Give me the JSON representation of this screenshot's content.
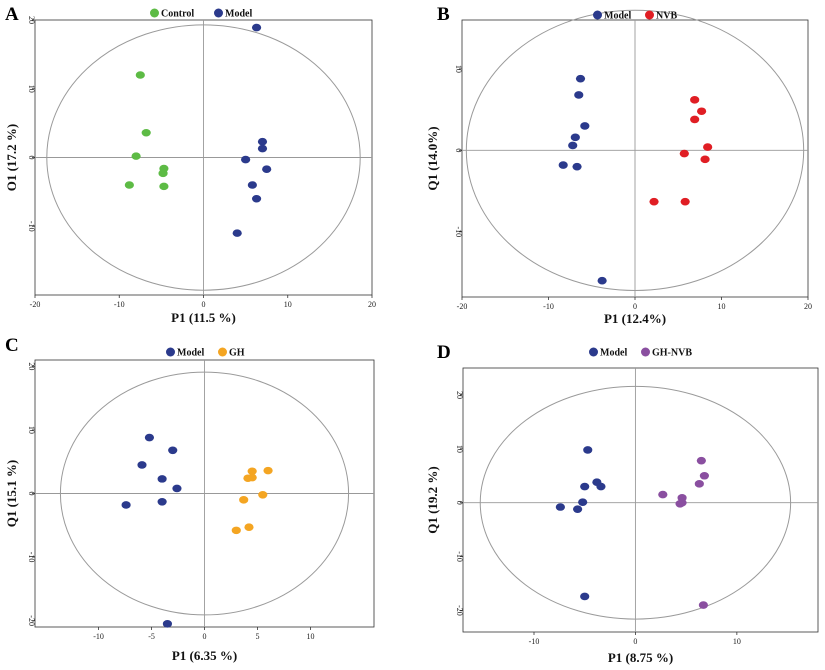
{
  "figure": {
    "colors": {
      "Model": "#2b3a8c",
      "Control": "#5dbb45",
      "NVB": "#e01e24",
      "GH": "#f4a522",
      "GH-NVB": "#8a4fa0",
      "axis": "#999999",
      "ellipse": "#9a9a9a"
    }
  },
  "chart_data": [
    {
      "type": "scatter",
      "panel_label": "A",
      "xlabel": "P1 (11.5 %)",
      "ylabel": "O1 (17.2 %)",
      "xlim": [
        -20,
        20
      ],
      "ylim": [
        -20,
        20
      ],
      "xticks": [
        "-20",
        "-10",
        "0",
        "10",
        "20"
      ],
      "yticks": [
        "20",
        "10",
        "0",
        "-10"
      ],
      "legend": [
        "Control",
        "Model"
      ],
      "ellipse": {
        "rx": 18.6,
        "ry": 19.3
      },
      "series": [
        {
          "name": "Control",
          "points": [
            [
              -7.5,
              12
            ],
            [
              -6.8,
              3.6
            ],
            [
              -8,
              0.2
            ],
            [
              -4.7,
              -1.6
            ],
            [
              -4.8,
              -2.3
            ],
            [
              -8.8,
              -4
            ],
            [
              -4.7,
              -4.2
            ]
          ]
        },
        {
          "name": "Model",
          "points": [
            [
              6.3,
              18.9
            ],
            [
              7,
              2.3
            ],
            [
              7,
              1.3
            ],
            [
              5,
              -0.3
            ],
            [
              7.5,
              -1.7
            ],
            [
              5.8,
              -4
            ],
            [
              6.3,
              -6
            ],
            [
              4,
              -11
            ]
          ]
        }
      ]
    },
    {
      "type": "scatter",
      "panel_label": "B",
      "xlabel": "P1 (12.4%)",
      "ylabel": "Q1 (14.0%)",
      "xlim": [
        -20,
        20
      ],
      "ylim": [
        -18,
        16
      ],
      "xticks": [
        "-20",
        "-10",
        "0",
        "10",
        "20"
      ],
      "yticks": [
        "10",
        "0",
        "-10"
      ],
      "legend": [
        "Model",
        "NVB"
      ],
      "ellipse": {
        "rx": 19.5,
        "ry": 17.2
      },
      "series": [
        {
          "name": "Model",
          "points": [
            [
              -6.3,
              8.8
            ],
            [
              -6.5,
              6.8
            ],
            [
              -5.8,
              3
            ],
            [
              -6.9,
              1.6
            ],
            [
              -7.2,
              0.6
            ],
            [
              -8.3,
              -1.8
            ],
            [
              -6.7,
              -2
            ],
            [
              -3.8,
              -16
            ]
          ]
        },
        {
          "name": "NVB",
          "points": [
            [
              6.9,
              6.2
            ],
            [
              7.7,
              4.8
            ],
            [
              6.9,
              3.8
            ],
            [
              8.4,
              0.4
            ],
            [
              5.7,
              -0.4
            ],
            [
              8.1,
              -1.1
            ],
            [
              2.2,
              -6.3
            ],
            [
              5.8,
              -6.3
            ]
          ]
        }
      ]
    },
    {
      "type": "scatter",
      "panel_label": "C",
      "xlabel": "P1 (6.35 %)",
      "ylabel": "Q1 (15.1 %)",
      "xlim": [
        -16,
        16
      ],
      "ylim": [
        -21,
        21
      ],
      "xticks": [
        "-10",
        "-5",
        "0",
        "5",
        "10"
      ],
      "yticks": [
        "20",
        "10",
        "0",
        "-10",
        "-20"
      ],
      "legend": [
        "Model",
        "GH"
      ],
      "ellipse": {
        "rx": 13.6,
        "ry": 19.1
      },
      "series": [
        {
          "name": "Model",
          "points": [
            [
              -5.2,
              8.8
            ],
            [
              -3,
              6.8
            ],
            [
              -5.9,
              4.5
            ],
            [
              -4,
              2.3
            ],
            [
              -2.6,
              0.8
            ],
            [
              -4,
              -1.3
            ],
            [
              -7.4,
              -1.8
            ],
            [
              -3.5,
              -20.5
            ]
          ]
        },
        {
          "name": "GH",
          "points": [
            [
              4.5,
              3.5
            ],
            [
              6,
              3.6
            ],
            [
              4.1,
              2.4
            ],
            [
              4.5,
              2.5
            ],
            [
              5.5,
              -0.2
            ],
            [
              3.7,
              -1
            ],
            [
              4.2,
              -5.3
            ],
            [
              3,
              -5.8
            ]
          ]
        }
      ]
    },
    {
      "type": "scatter",
      "panel_label": "D",
      "xlabel": "P1 (8.75 %)",
      "ylabel": "Q1 (19.2 %)",
      "xlim": [
        -17,
        18
      ],
      "ylim": [
        -24,
        25
      ],
      "xticks": [
        "-10",
        "0",
        "10"
      ],
      "yticks": [
        "20",
        "10",
        "0",
        "-10",
        "-20"
      ],
      "legend": [
        "Model",
        "GH-NVB"
      ],
      "ellipse": {
        "rx": 15.3,
        "ry": 21.6
      },
      "series": [
        {
          "name": "Model",
          "points": [
            [
              -4.7,
              9.8
            ],
            [
              -3.8,
              3.8
            ],
            [
              -3.4,
              3
            ],
            [
              -5,
              3
            ],
            [
              -5.2,
              0.1
            ],
            [
              -7.4,
              -0.8
            ],
            [
              -5.7,
              -1.2
            ],
            [
              -5,
              -17.4
            ]
          ]
        },
        {
          "name": "GH-NVB",
          "points": [
            [
              6.5,
              7.8
            ],
            [
              6.8,
              5
            ],
            [
              6.3,
              3.5
            ],
            [
              2.7,
              1.5
            ],
            [
              4.6,
              0.9
            ],
            [
              4.6,
              0
            ],
            [
              4.4,
              -0.2
            ],
            [
              6.7,
              -19
            ]
          ]
        }
      ]
    }
  ]
}
